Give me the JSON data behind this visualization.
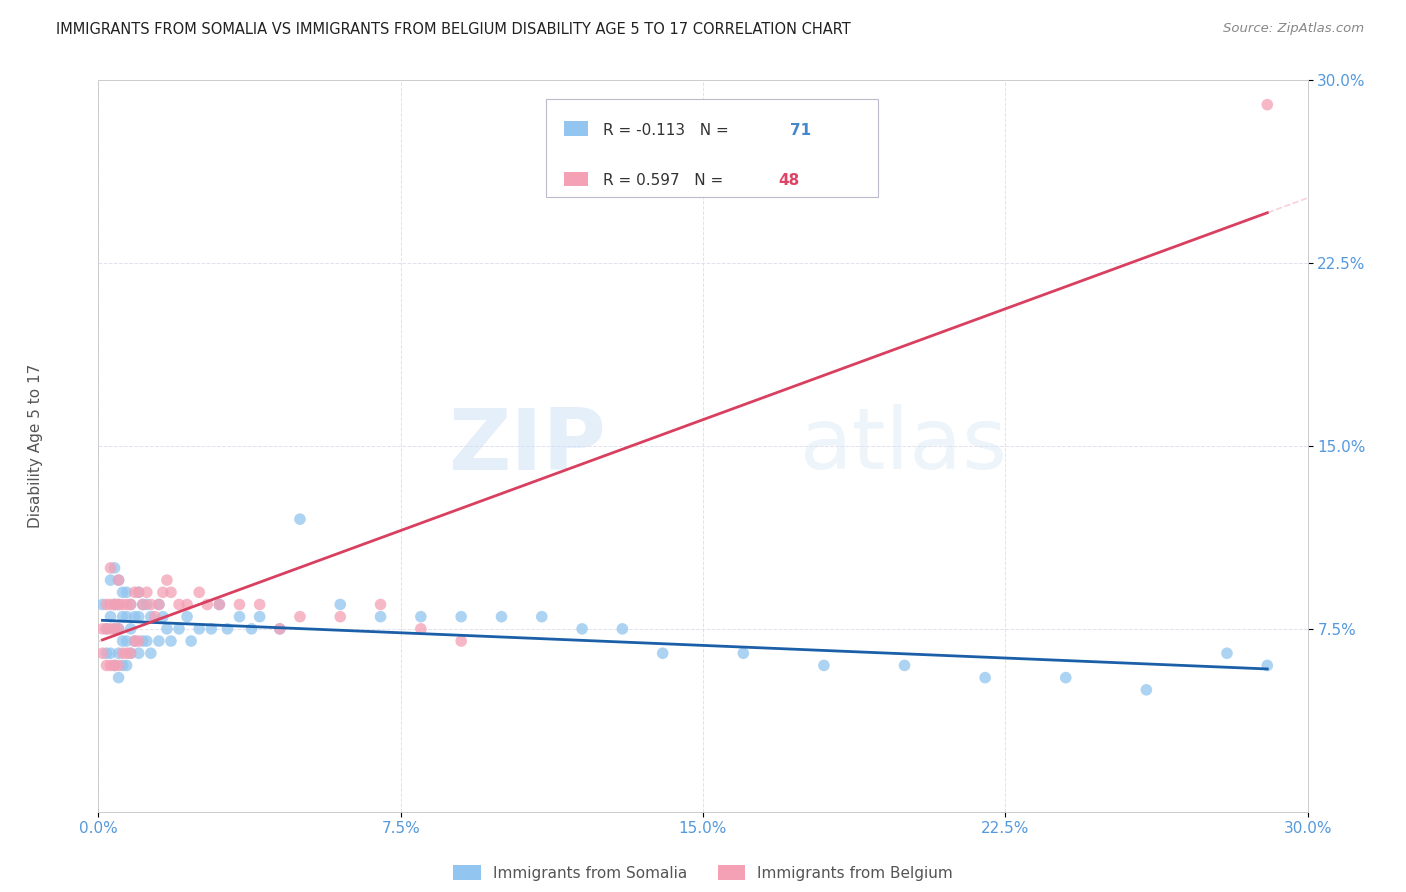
{
  "title": "IMMIGRANTS FROM SOMALIA VS IMMIGRANTS FROM BELGIUM DISABILITY AGE 5 TO 17 CORRELATION CHART",
  "source": "Source: ZipAtlas.com",
  "ylabel": "Disability Age 5 to 17",
  "xlim": [
    0.0,
    0.3
  ],
  "ylim": [
    0.0,
    0.3
  ],
  "xticks": [
    0.0,
    0.075,
    0.15,
    0.225,
    0.3
  ],
  "yticks": [
    0.075,
    0.15,
    0.225,
    0.3
  ],
  "xticklabels": [
    "0.0%",
    "7.5%",
    "15.0%",
    "22.5%",
    "30.0%"
  ],
  "yticklabels": [
    "7.5%",
    "15.0%",
    "22.5%",
    "30.0%"
  ],
  "somalia_color": "#92c5f0",
  "belgium_color": "#f4a0b5",
  "somalia_R": -0.113,
  "somalia_N": 71,
  "belgium_R": 0.597,
  "belgium_N": 48,
  "watermark_zip": "ZIP",
  "watermark_atlas": "atlas",
  "legend_somalia_label": "Immigrants from Somalia",
  "legend_belgium_label": "Immigrants from Belgium",
  "somalia_trendline_color": "#1a5fa8",
  "belgium_trendline_color": "#d94060",
  "background_color": "#ffffff",
  "somalia_x": [
    0.001,
    0.002,
    0.002,
    0.003,
    0.003,
    0.003,
    0.004,
    0.004,
    0.004,
    0.004,
    0.005,
    0.005,
    0.005,
    0.005,
    0.005,
    0.006,
    0.006,
    0.006,
    0.006,
    0.007,
    0.007,
    0.007,
    0.007,
    0.008,
    0.008,
    0.008,
    0.009,
    0.009,
    0.01,
    0.01,
    0.01,
    0.011,
    0.011,
    0.012,
    0.012,
    0.013,
    0.013,
    0.015,
    0.015,
    0.016,
    0.017,
    0.018,
    0.02,
    0.022,
    0.023,
    0.025,
    0.028,
    0.03,
    0.032,
    0.035,
    0.038,
    0.04,
    0.045,
    0.05,
    0.06,
    0.07,
    0.08,
    0.09,
    0.1,
    0.11,
    0.12,
    0.13,
    0.14,
    0.16,
    0.18,
    0.2,
    0.22,
    0.24,
    0.26,
    0.28,
    0.29
  ],
  "somalia_y": [
    0.085,
    0.075,
    0.065,
    0.095,
    0.08,
    0.065,
    0.1,
    0.085,
    0.075,
    0.06,
    0.095,
    0.085,
    0.075,
    0.065,
    0.055,
    0.09,
    0.08,
    0.07,
    0.06,
    0.09,
    0.08,
    0.07,
    0.06,
    0.085,
    0.075,
    0.065,
    0.08,
    0.07,
    0.09,
    0.08,
    0.065,
    0.085,
    0.07,
    0.085,
    0.07,
    0.08,
    0.065,
    0.085,
    0.07,
    0.08,
    0.075,
    0.07,
    0.075,
    0.08,
    0.07,
    0.075,
    0.075,
    0.085,
    0.075,
    0.08,
    0.075,
    0.08,
    0.075,
    0.12,
    0.085,
    0.08,
    0.08,
    0.08,
    0.08,
    0.08,
    0.075,
    0.075,
    0.065,
    0.065,
    0.06,
    0.06,
    0.055,
    0.055,
    0.05,
    0.065,
    0.06
  ],
  "belgium_x": [
    0.001,
    0.001,
    0.002,
    0.002,
    0.002,
    0.003,
    0.003,
    0.003,
    0.003,
    0.004,
    0.004,
    0.004,
    0.005,
    0.005,
    0.005,
    0.005,
    0.006,
    0.006,
    0.007,
    0.007,
    0.008,
    0.008,
    0.009,
    0.009,
    0.01,
    0.01,
    0.011,
    0.012,
    0.013,
    0.014,
    0.015,
    0.016,
    0.017,
    0.018,
    0.02,
    0.022,
    0.025,
    0.027,
    0.03,
    0.035,
    0.04,
    0.045,
    0.05,
    0.06,
    0.07,
    0.08,
    0.09,
    0.29
  ],
  "belgium_y": [
    0.075,
    0.065,
    0.085,
    0.075,
    0.06,
    0.1,
    0.085,
    0.075,
    0.06,
    0.085,
    0.075,
    0.06,
    0.095,
    0.085,
    0.075,
    0.06,
    0.085,
    0.065,
    0.085,
    0.065,
    0.085,
    0.065,
    0.09,
    0.07,
    0.09,
    0.07,
    0.085,
    0.09,
    0.085,
    0.08,
    0.085,
    0.09,
    0.095,
    0.09,
    0.085,
    0.085,
    0.09,
    0.085,
    0.085,
    0.085,
    0.085,
    0.075,
    0.08,
    0.08,
    0.085,
    0.075,
    0.07,
    0.29
  ]
}
